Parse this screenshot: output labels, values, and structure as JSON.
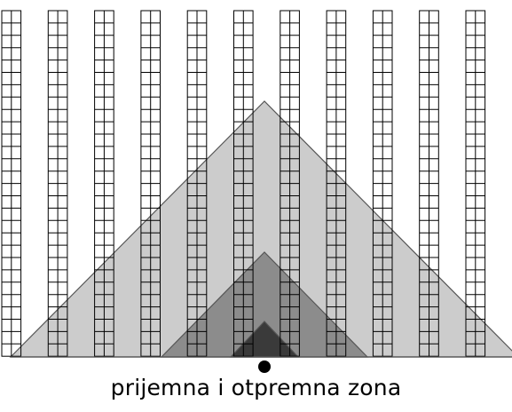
{
  "caption": "prijemna i otpremna zona",
  "colors": {
    "background": "#ffffff",
    "rack_line": "#000000",
    "zone_outer": "#cccccc",
    "zone_middle": "#8c8c8c",
    "zone_inner": "#3a3a3a",
    "outline": "#555555",
    "dock_point": "#000000"
  },
  "racks": {
    "count": 11,
    "columns_per_rack": 2,
    "rows": 28
  },
  "zones": [
    {
      "name": "outer-zone",
      "level": 1
    },
    {
      "name": "middle-zone",
      "level": 2
    },
    {
      "name": "inner-zone",
      "level": 3
    }
  ]
}
